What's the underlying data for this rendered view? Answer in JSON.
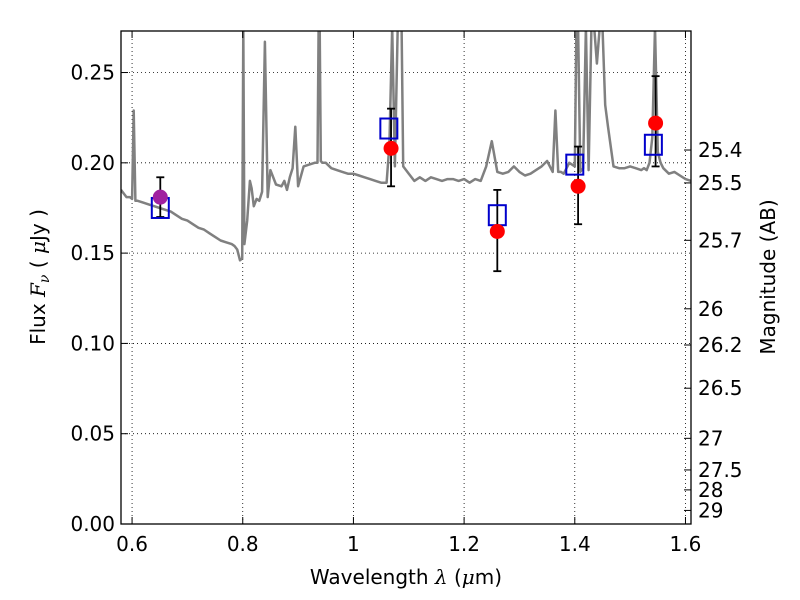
{
  "chart_data": {
    "type": "scatter",
    "xlabel": {
      "prefix": "Wavelength ",
      "symbol": "λ",
      "unit_open": " (",
      "unit_mu": "μ",
      "unit_rest": "m)"
    },
    "ylabel": {
      "prefix": "Flux ",
      "symbol": "F",
      "sub": "ν",
      "unit_open": " ( ",
      "unit_mu": "μ",
      "unit_rest": "Jy )"
    },
    "y2label": "Magnitude (AB)",
    "xlim": [
      0.58,
      1.61
    ],
    "ylim": [
      0.0,
      0.273
    ],
    "grid": true,
    "x_ticks": [
      0.6,
      0.8,
      1.0,
      1.2,
      1.4,
      1.6
    ],
    "x_tick_labels": [
      "0.6",
      "0.8",
      "1",
      "1.2",
      "1.4",
      "1.6"
    ],
    "y_ticks": [
      0.0,
      0.05,
      0.1,
      0.15,
      0.2,
      0.25
    ],
    "y_tick_labels": [
      "0.00",
      "0.05",
      "0.10",
      "0.15",
      "0.20",
      "0.25"
    ],
    "mag_ticks": [
      25.4,
      25.5,
      25.7,
      26,
      26.2,
      26.5,
      27,
      27.5,
      28,
      29
    ],
    "mag_tick_labels": [
      "25.4",
      "25.5",
      "25.7",
      "26",
      "26.2",
      "26.5",
      "27",
      "27.5",
      "28",
      "29"
    ],
    "observed": {
      "color": "#ff0000",
      "x": [
        1.068,
        1.26,
        1.406,
        1.546
      ],
      "y": [
        0.208,
        0.162,
        0.187,
        0.222
      ],
      "yerr_low": [
        0.187,
        0.14,
        0.166,
        0.198
      ],
      "yerr_high": [
        0.23,
        0.185,
        0.209,
        0.248
      ]
    },
    "observed_optical": {
      "color": "#a020a0",
      "x": [
        0.651
      ],
      "y": [
        0.181
      ],
      "yerr_low": [
        0.17
      ],
      "yerr_high": [
        0.192
      ]
    },
    "model_photometry": {
      "color": "#0000cc",
      "x": [
        0.651,
        1.064,
        1.26,
        1.4,
        1.542
      ],
      "y": [
        0.175,
        0.219,
        0.171,
        0.199,
        0.21
      ]
    },
    "model_spectrum": {
      "color": "#808080",
      "x": [
        0.58,
        0.59,
        0.596,
        0.6,
        0.603,
        0.606,
        0.61,
        0.62,
        0.63,
        0.64,
        0.65,
        0.66,
        0.67,
        0.68,
        0.69,
        0.7,
        0.71,
        0.72,
        0.73,
        0.74,
        0.75,
        0.76,
        0.77,
        0.78,
        0.785,
        0.79,
        0.795,
        0.799,
        0.801,
        0.803,
        0.808,
        0.813,
        0.816,
        0.82,
        0.825,
        0.83,
        0.835,
        0.84,
        0.845,
        0.85,
        0.86,
        0.87,
        0.875,
        0.88,
        0.885,
        0.89,
        0.895,
        0.9,
        0.91,
        0.92,
        0.93,
        0.935,
        0.937,
        0.939,
        0.941,
        0.944,
        0.95,
        0.96,
        0.97,
        0.98,
        0.99,
        1.0,
        1.01,
        1.02,
        1.03,
        1.04,
        1.05,
        1.06,
        1.065,
        1.07,
        1.075,
        1.08,
        1.085,
        1.087,
        1.09,
        1.1,
        1.11,
        1.12,
        1.13,
        1.14,
        1.15,
        1.16,
        1.17,
        1.18,
        1.19,
        1.2,
        1.21,
        1.22,
        1.23,
        1.24,
        1.25,
        1.26,
        1.27,
        1.28,
        1.29,
        1.3,
        1.31,
        1.32,
        1.33,
        1.34,
        1.35,
        1.36,
        1.365,
        1.37,
        1.375,
        1.38,
        1.39,
        1.4,
        1.403,
        1.406,
        1.41,
        1.415,
        1.42,
        1.425,
        1.43,
        1.435,
        1.44,
        1.445,
        1.45,
        1.455,
        1.46,
        1.47,
        1.48,
        1.49,
        1.5,
        1.51,
        1.52,
        1.525,
        1.53,
        1.535,
        1.54,
        1.545,
        1.55,
        1.555,
        1.56,
        1.57,
        1.58,
        1.59,
        1.6,
        1.61
      ],
      "y": [
        0.185,
        0.181,
        0.181,
        0.18,
        0.229,
        0.179,
        0.179,
        0.178,
        0.177,
        0.176,
        0.175,
        0.174,
        0.173,
        0.171,
        0.169,
        0.168,
        0.166,
        0.164,
        0.163,
        0.161,
        0.159,
        0.157,
        0.156,
        0.155,
        0.154,
        0.152,
        0.146,
        0.147,
        0.275,
        0.155,
        0.168,
        0.19,
        0.186,
        0.176,
        0.18,
        0.179,
        0.184,
        0.267,
        0.181,
        0.196,
        0.188,
        0.187,
        0.19,
        0.185,
        0.192,
        0.197,
        0.22,
        0.187,
        0.198,
        0.199,
        0.2,
        0.2,
        0.275,
        0.275,
        0.201,
        0.2,
        0.2,
        0.197,
        0.196,
        0.195,
        0.194,
        0.194,
        0.193,
        0.192,
        0.191,
        0.19,
        0.189,
        0.189,
        0.21,
        0.275,
        0.198,
        0.275,
        0.275,
        0.275,
        0.198,
        0.194,
        0.19,
        0.192,
        0.19,
        0.192,
        0.191,
        0.19,
        0.191,
        0.191,
        0.19,
        0.191,
        0.189,
        0.191,
        0.19,
        0.198,
        0.212,
        0.195,
        0.194,
        0.195,
        0.198,
        0.195,
        0.193,
        0.194,
        0.196,
        0.198,
        0.201,
        0.195,
        0.229,
        0.195,
        0.195,
        0.194,
        0.2,
        0.198,
        0.275,
        0.275,
        0.195,
        0.197,
        0.275,
        0.196,
        0.275,
        0.275,
        0.255,
        0.275,
        0.275,
        0.232,
        0.22,
        0.198,
        0.197,
        0.197,
        0.198,
        0.197,
        0.196,
        0.197,
        0.196,
        0.2,
        0.214,
        0.275,
        0.206,
        0.2,
        0.197,
        0.194,
        0.195,
        0.193,
        0.191,
        0.19
      ]
    }
  }
}
